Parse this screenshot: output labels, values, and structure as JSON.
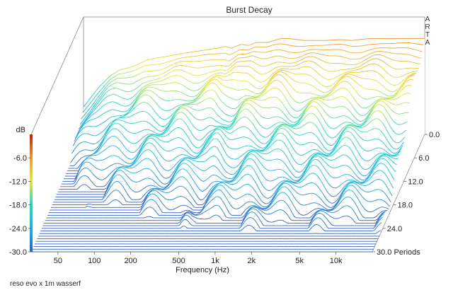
{
  "chart_data": {
    "type": "waterfall",
    "title": "Burst Decay",
    "watermark": "A\nR\nT\nA",
    "xlabel": "Frequency (Hz)",
    "x_scale": "log",
    "xlim": [
      30,
      20000
    ],
    "x_ticks": [
      {
        "label": "50",
        "value": 50
      },
      {
        "label": "100",
        "value": 100
      },
      {
        "label": "200",
        "value": 200
      },
      {
        "label": "500",
        "value": 500
      },
      {
        "label": "1k",
        "value": 1000
      },
      {
        "label": "2k",
        "value": 2000
      },
      {
        "label": "5k",
        "value": 5000
      },
      {
        "label": "10k",
        "value": 10000
      }
    ],
    "ylabel": "dB",
    "ylim": [
      -30,
      0
    ],
    "y_ticks": [
      {
        "label": "-6.0",
        "value": -6
      },
      {
        "label": "-12.0",
        "value": -12
      },
      {
        "label": "-18.0",
        "value": -18
      },
      {
        "label": "-24.0",
        "value": -24
      },
      {
        "label": "-30.0",
        "value": -30
      }
    ],
    "zlabel": "Periods",
    "zlim": [
      0,
      30
    ],
    "z_ticks": [
      {
        "label": "0.0",
        "value": 0
      },
      {
        "label": "6.0",
        "value": 6
      },
      {
        "label": "12.0",
        "value": 12
      },
      {
        "label": "18.0",
        "value": 18
      },
      {
        "label": "24.0",
        "value": 24
      },
      {
        "label": "30.0",
        "value": 30
      }
    ],
    "slice_count": 46,
    "colormap": [
      "#2a5fd0",
      "#18b4e8",
      "#20d8c0",
      "#e8e838",
      "#f09a28",
      "#cc1a10"
    ],
    "response_at_zero_periods": [
      [
        30,
        -23
      ],
      [
        40,
        -18
      ],
      [
        50,
        -15
      ],
      [
        60,
        -13.5
      ],
      [
        70,
        -13
      ],
      [
        80,
        -12.5
      ],
      [
        100,
        -11
      ],
      [
        120,
        -10.5
      ],
      [
        150,
        -10
      ],
      [
        200,
        -9.3
      ],
      [
        230,
        -9
      ],
      [
        300,
        -8.5
      ],
      [
        380,
        -8
      ],
      [
        450,
        -7.5
      ],
      [
        500,
        -8
      ],
      [
        600,
        -7
      ],
      [
        700,
        -7.3
      ],
      [
        800,
        -6.5
      ],
      [
        1000,
        -6.5
      ],
      [
        1200,
        -5.8
      ],
      [
        1300,
        -5.5
      ],
      [
        1500,
        -5.5
      ],
      [
        2000,
        -6
      ],
      [
        3000,
        -6
      ],
      [
        4000,
        -5.8
      ],
      [
        5000,
        -6
      ],
      [
        7000,
        -5.5
      ],
      [
        10000,
        -5.5
      ],
      [
        15000,
        -5.5
      ],
      [
        20000,
        -5.5
      ]
    ]
  },
  "footer": {
    "caption": "reso evo x 1m wasserf"
  }
}
